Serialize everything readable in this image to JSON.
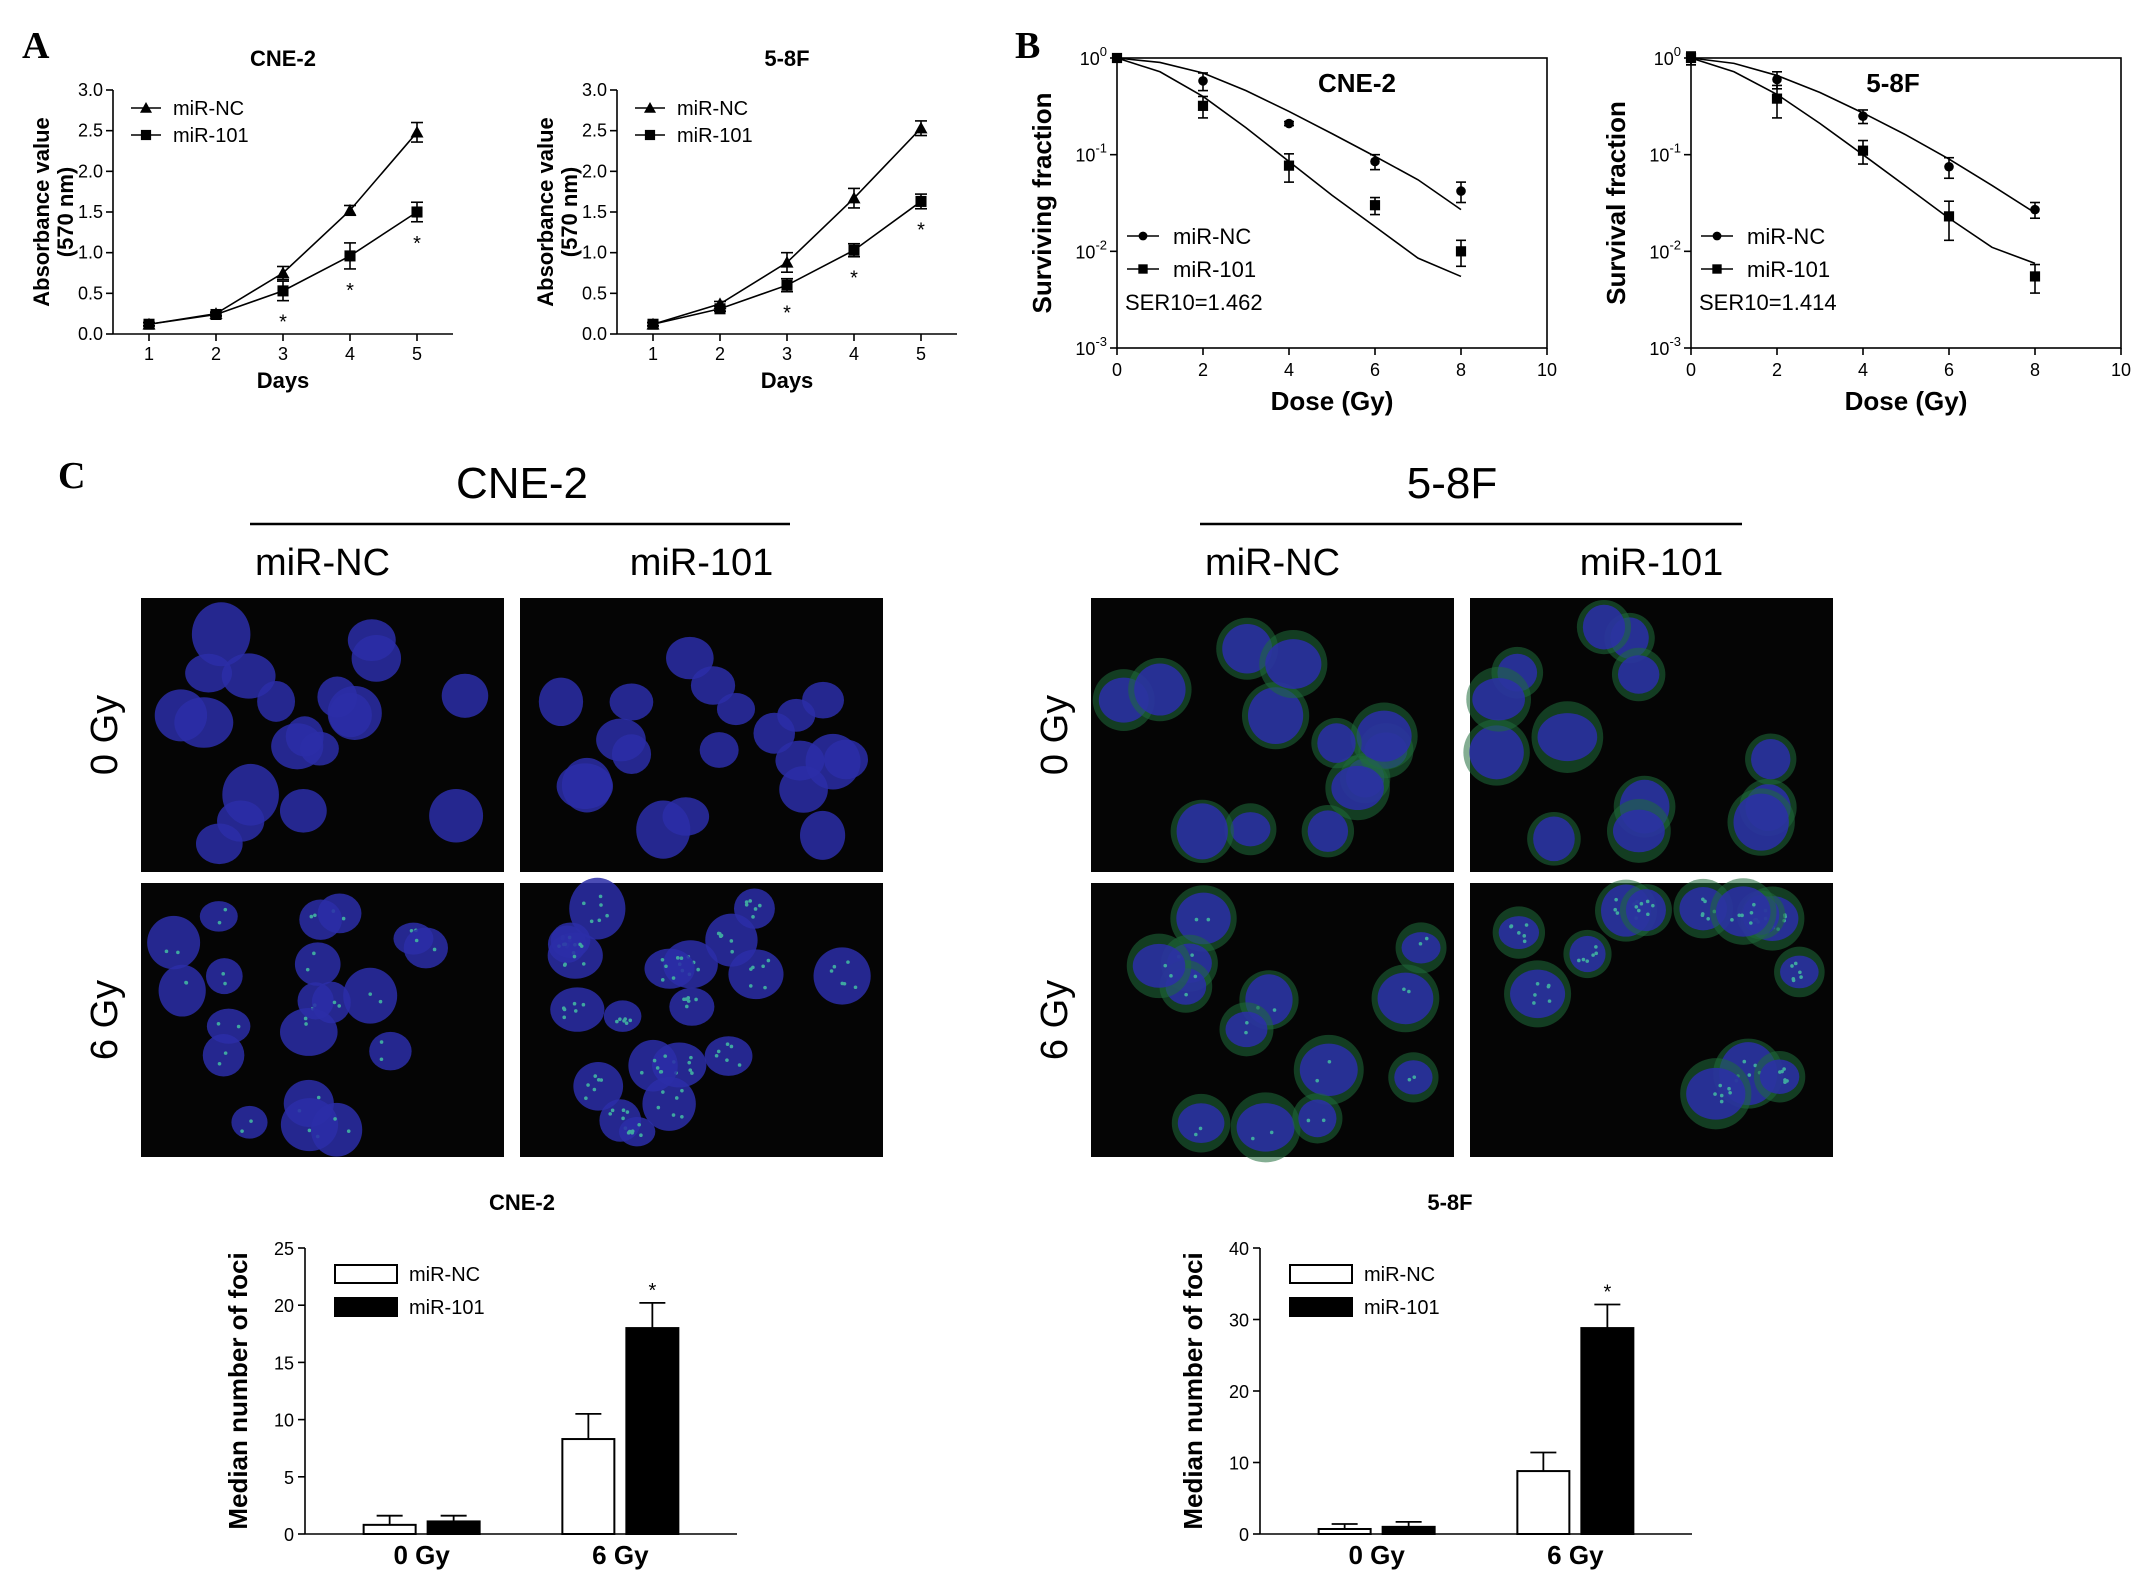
{
  "panels": {
    "A": "A",
    "B": "B",
    "C": "C"
  },
  "chart_data": [
    {
      "id": "A-CNE2",
      "type": "line",
      "title": "CNE-2",
      "xlabel": "Days",
      "ylabel": "Absorbance value",
      "ylabel2": "(570 nm)",
      "x": [
        1,
        2,
        3,
        4,
        5
      ],
      "xticks": [
        "1",
        "2",
        "3",
        "4",
        "5"
      ],
      "ylim": [
        0,
        3
      ],
      "yticks": [
        "0.0",
        "0.5",
        "1.0",
        "1.5",
        "2.0",
        "2.5",
        "3.0"
      ],
      "series": [
        {
          "name": "miR-NC",
          "marker": "triangle",
          "values": [
            0.12,
            0.25,
            0.75,
            1.52,
            2.48
          ],
          "errors": [
            0.02,
            0.02,
            0.08,
            0.06,
            0.12
          ]
        },
        {
          "name": "miR-101",
          "marker": "square",
          "values": [
            0.12,
            0.24,
            0.53,
            0.96,
            1.5
          ],
          "errors": [
            0.02,
            0.02,
            0.12,
            0.16,
            0.12
          ]
        }
      ],
      "significance": [
        "",
        "",
        "*",
        "*",
        "*"
      ]
    },
    {
      "id": "A-58F",
      "type": "line",
      "title": "5-8F",
      "xlabel": "Days",
      "ylabel": "Absorbance value",
      "ylabel2": "(570 nm)",
      "x": [
        1,
        2,
        3,
        4,
        5
      ],
      "xticks": [
        "1",
        "2",
        "3",
        "4",
        "5"
      ],
      "ylim": [
        0,
        3
      ],
      "yticks": [
        "0.0",
        "0.5",
        "1.0",
        "1.5",
        "2.0",
        "2.5",
        "3.0"
      ],
      "series": [
        {
          "name": "miR-NC",
          "marker": "triangle",
          "values": [
            0.12,
            0.37,
            0.88,
            1.67,
            2.53
          ],
          "errors": [
            0.02,
            0.03,
            0.12,
            0.12,
            0.09
          ]
        },
        {
          "name": "miR-101",
          "marker": "square",
          "values": [
            0.12,
            0.31,
            0.6,
            1.03,
            1.63
          ],
          "errors": [
            0.02,
            0.03,
            0.08,
            0.08,
            0.09
          ]
        }
      ],
      "significance": [
        "",
        "",
        "*",
        "*",
        "*"
      ]
    },
    {
      "id": "B-CNE2",
      "type": "scatter",
      "title": "CNE-2",
      "xlabel": "Dose (Gy)",
      "ylabel": "Surviving fraction",
      "x": [
        0,
        2,
        4,
        6,
        8
      ],
      "xlim": [
        0,
        10
      ],
      "xticks": [
        "0",
        "2",
        "4",
        "6",
        "8",
        "10"
      ],
      "yscale": "log",
      "ylim": [
        0.001,
        1
      ],
      "ytick_base": "10",
      "ytick_exps": [
        "0",
        "-1",
        "-2",
        "-3"
      ],
      "annotation": "SER10=1.462",
      "series": [
        {
          "name": "miR-NC",
          "marker": "circle",
          "values": [
            1.0,
            0.58,
            0.21,
            0.085,
            0.042
          ],
          "errors": [
            0.06,
            0.12,
            0.01,
            0.015,
            0.01
          ],
          "fit": [
            [
              0,
              1.0
            ],
            [
              1,
              0.9
            ],
            [
              2,
              0.7
            ],
            [
              3,
              0.46
            ],
            [
              4,
              0.28
            ],
            [
              5,
              0.165
            ],
            [
              6,
              0.096
            ],
            [
              7,
              0.055
            ],
            [
              8,
              0.027
            ]
          ]
        },
        {
          "name": "miR-101",
          "marker": "square",
          "values": [
            1.0,
            0.32,
            0.077,
            0.03,
            0.01
          ],
          "errors": [
            0.06,
            0.08,
            0.025,
            0.006,
            0.003
          ],
          "fit": [
            [
              0,
              1.0
            ],
            [
              1,
              0.72
            ],
            [
              2,
              0.4
            ],
            [
              3,
              0.19
            ],
            [
              4,
              0.085
            ],
            [
              5,
              0.038
            ],
            [
              6,
              0.018
            ],
            [
              7,
              0.0085
            ],
            [
              8,
              0.0055
            ]
          ]
        }
      ]
    },
    {
      "id": "B-58F",
      "type": "scatter",
      "title": "5-8F",
      "xlabel": "Dose (Gy)",
      "ylabel": "Survival fraction",
      "x": [
        0,
        2,
        4,
        6,
        8
      ],
      "xlim": [
        0,
        10
      ],
      "xticks": [
        "0",
        "2",
        "4",
        "6",
        "8",
        "10"
      ],
      "yscale": "log",
      "ylim": [
        0.001,
        1
      ],
      "ytick_base": "10",
      "ytick_exps": [
        "0",
        "-1",
        "-2",
        "-3"
      ],
      "annotation": "SER10=1.414",
      "series": [
        {
          "name": "miR-NC",
          "marker": "circle",
          "values": [
            1.0,
            0.6,
            0.25,
            0.075,
            0.027
          ],
          "errors": [
            0.15,
            0.12,
            0.04,
            0.018,
            0.005
          ],
          "fit": [
            [
              0,
              1.0
            ],
            [
              1,
              0.88
            ],
            [
              2,
              0.66
            ],
            [
              3,
              0.44
            ],
            [
              4,
              0.27
            ],
            [
              5,
              0.16
            ],
            [
              6,
              0.09
            ],
            [
              7,
              0.048
            ],
            [
              8,
              0.025
            ]
          ]
        },
        {
          "name": "miR-101",
          "marker": "square",
          "values": [
            1.0,
            0.38,
            0.11,
            0.023,
            0.0055
          ],
          "errors": [
            0.15,
            0.14,
            0.03,
            0.01,
            0.0018
          ],
          "fit": [
            [
              0,
              1.0
            ],
            [
              1,
              0.72
            ],
            [
              2,
              0.42
            ],
            [
              3,
              0.21
            ],
            [
              4,
              0.1
            ],
            [
              5,
              0.047
            ],
            [
              6,
              0.022
            ],
            [
              7,
              0.011
            ],
            [
              8,
              0.0075
            ]
          ]
        }
      ]
    },
    {
      "id": "C-CNE2",
      "type": "bar",
      "title": "CNE-2",
      "categories": [
        "0 Gy",
        "6 Gy"
      ],
      "ylabel": "Median number of foci",
      "ylim": [
        0,
        25
      ],
      "yticks": [
        "0",
        "5",
        "10",
        "15",
        "20",
        "25"
      ],
      "series": [
        {
          "name": "miR-NC",
          "fill": "#ffffff",
          "values": [
            0.8,
            8.3
          ],
          "errors": [
            0.8,
            2.2
          ]
        },
        {
          "name": "miR-101",
          "fill": "#000000",
          "values": [
            1.1,
            18.0
          ],
          "errors": [
            0.5,
            2.2
          ]
        }
      ],
      "significance": [
        "",
        "*"
      ]
    },
    {
      "id": "C-58F",
      "type": "bar",
      "title": "5-8F",
      "categories": [
        "0 Gy",
        "6 Gy"
      ],
      "ylabel": "Median number of foci",
      "ylim": [
        0,
        40
      ],
      "yticks": [
        "0",
        "10",
        "20",
        "30",
        "40"
      ],
      "series": [
        {
          "name": "miR-NC",
          "fill": "#ffffff",
          "values": [
            0.7,
            8.8
          ],
          "errors": [
            0.7,
            2.6
          ]
        },
        {
          "name": "miR-101",
          "fill": "#000000",
          "values": [
            1.0,
            28.8
          ],
          "errors": [
            0.7,
            3.3
          ]
        }
      ],
      "significance": [
        "",
        "*"
      ]
    }
  ],
  "microscopy": {
    "groups": [
      {
        "title": "CNE-2",
        "columns": [
          "miR-NC",
          "miR-101"
        ]
      },
      {
        "title": "5-8F",
        "columns": [
          "miR-NC",
          "miR-101"
        ]
      }
    ],
    "rows": [
      "0 Gy",
      "6 Gy"
    ],
    "colors": {
      "background": "#050505",
      "nucleus": "#2b2ea8",
      "foci": "#3fa7a0",
      "cytoplasm": "#1f6b3a"
    }
  }
}
